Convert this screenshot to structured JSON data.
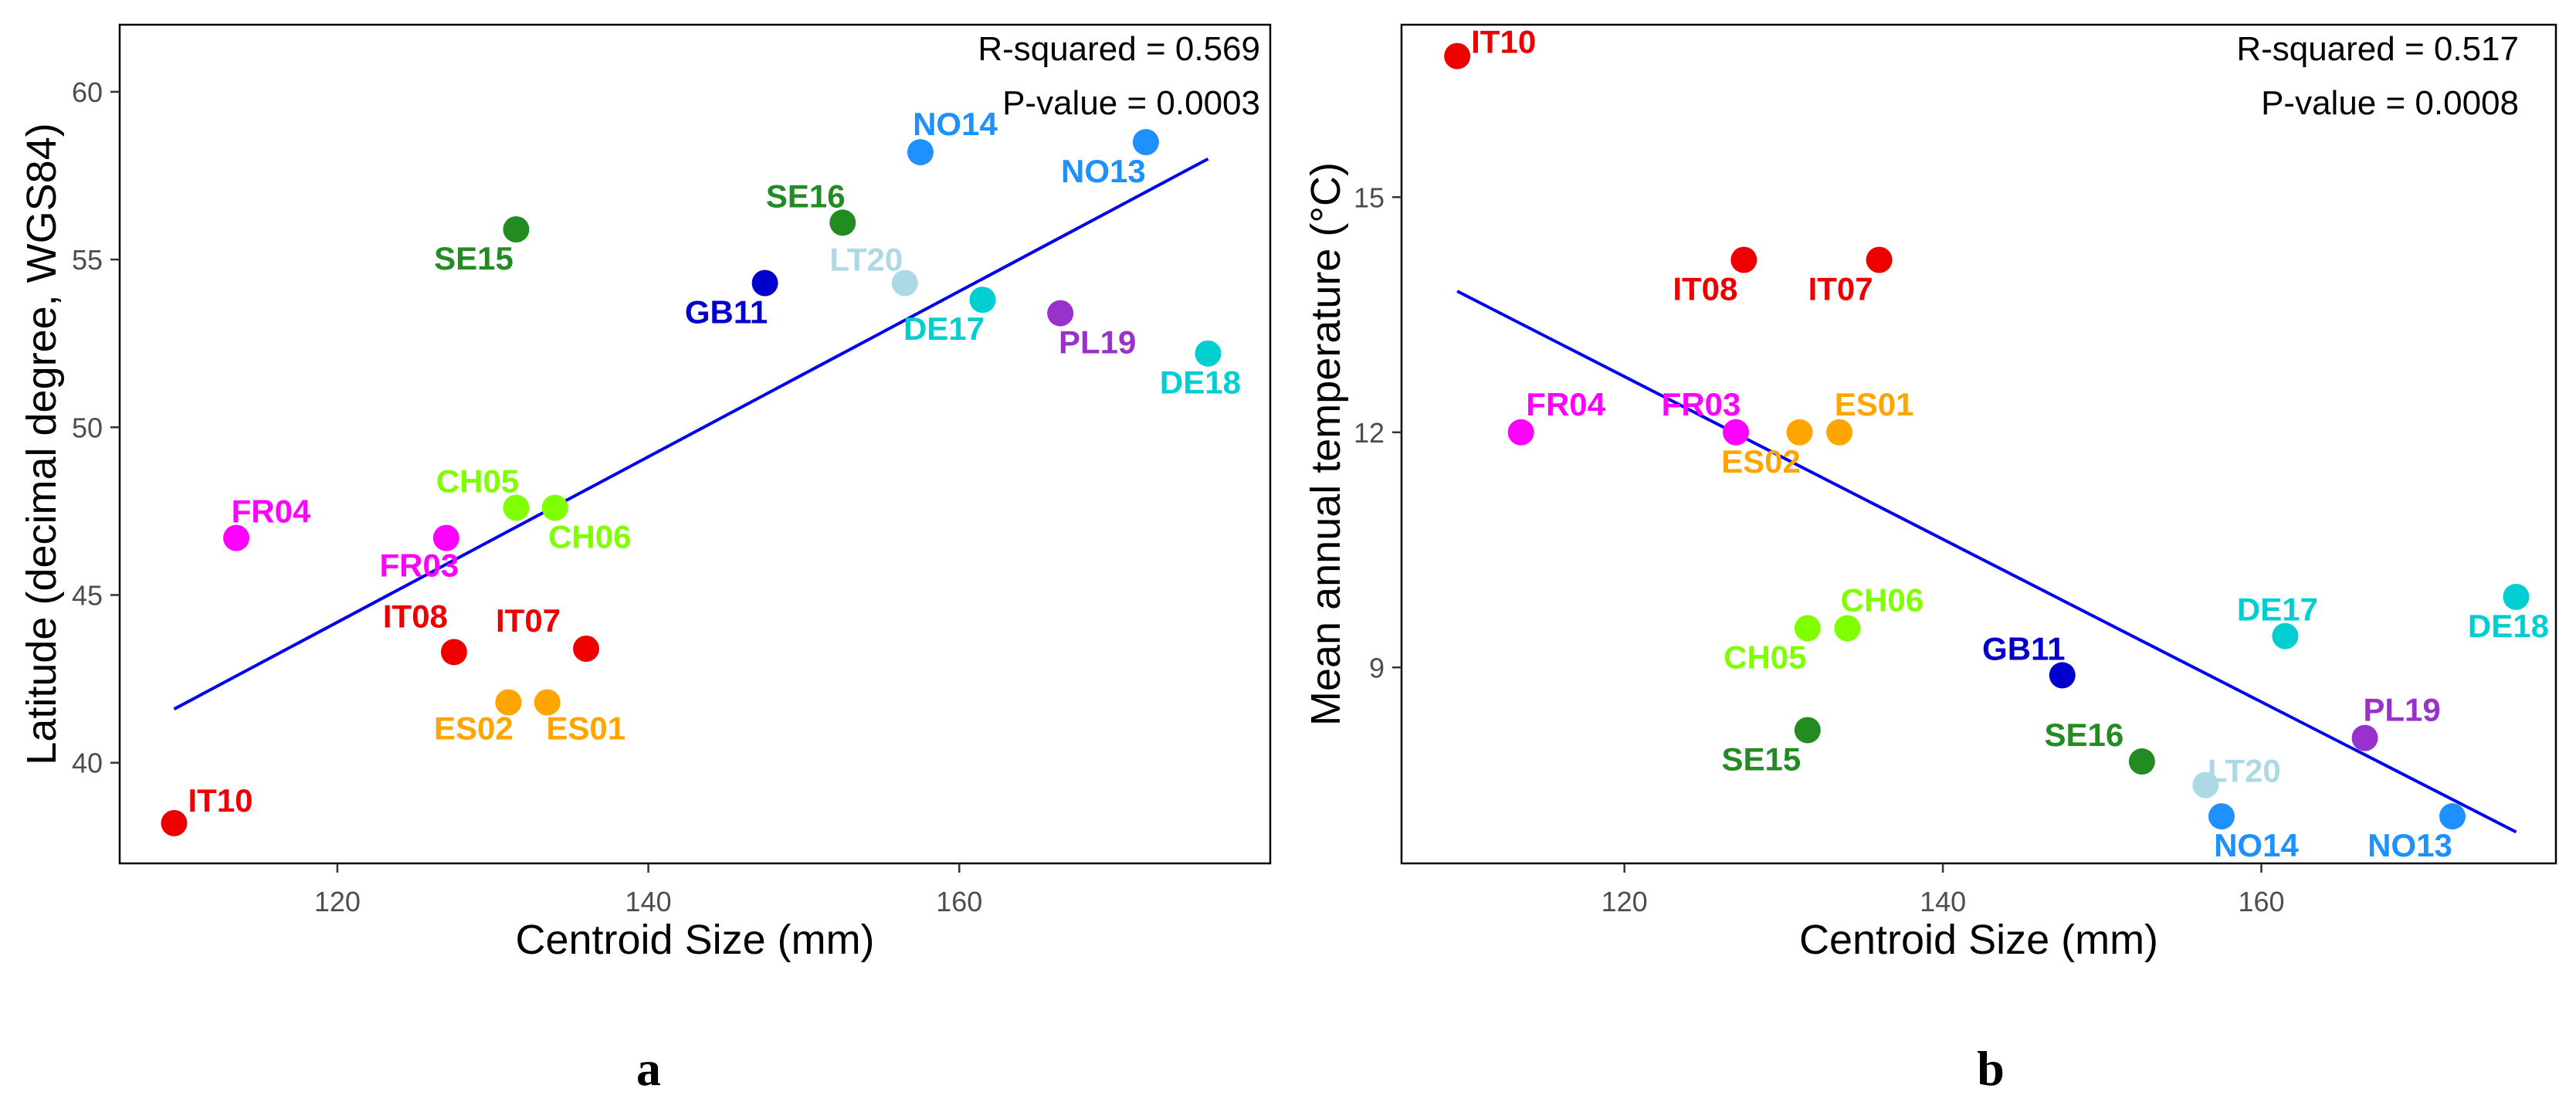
{
  "chart_data": [
    {
      "type": "scatter",
      "panel_label": "a",
      "xlabel": "Centroid Size (mm)",
      "ylabel": "Latitude (decimal degree, WGS84)",
      "xlim": [
        106,
        180
      ],
      "ylim": [
        37,
        62
      ],
      "xticks": [
        "120",
        "140",
        "160"
      ],
      "yticks": [
        "40",
        "45",
        "50",
        "55",
        "60"
      ],
      "grid": false,
      "stats": {
        "r_squared": "R-squared = 0.569",
        "p_value": "P-value = 0.0003"
      },
      "regression": {
        "x": [
          109.5,
          176
        ],
        "y": [
          41.6,
          58.0
        ]
      },
      "points": [
        {
          "label": "IT10",
          "x": 109.5,
          "y": 38.2,
          "color": "#ee0000"
        },
        {
          "label": "FR04",
          "x": 113.5,
          "y": 46.7,
          "color": "#ff00ff"
        },
        {
          "label": "FR03",
          "x": 127,
          "y": 46.7,
          "color": "#ff00ff"
        },
        {
          "label": "IT08",
          "x": 127.5,
          "y": 43.3,
          "color": "#ee0000"
        },
        {
          "label": "CH05",
          "x": 131.5,
          "y": 47.6,
          "color": "#7fff00"
        },
        {
          "label": "CH06",
          "x": 134,
          "y": 47.6,
          "color": "#7fff00"
        },
        {
          "label": "ES02",
          "x": 131,
          "y": 41.8,
          "color": "#ffa500"
        },
        {
          "label": "ES01",
          "x": 133.5,
          "y": 41.8,
          "color": "#ffa500"
        },
        {
          "label": "SE15",
          "x": 131.5,
          "y": 55.9,
          "color": "#228b22"
        },
        {
          "label": "IT07",
          "x": 136,
          "y": 43.4,
          "color": "#ee0000"
        },
        {
          "label": "GB11",
          "x": 147.5,
          "y": 54.3,
          "color": "#0000cd"
        },
        {
          "label": "SE16",
          "x": 152.5,
          "y": 56.1,
          "color": "#228b22"
        },
        {
          "label": "LT20",
          "x": 156.5,
          "y": 54.3,
          "color": "#add8e6"
        },
        {
          "label": "NO14",
          "x": 157.5,
          "y": 58.2,
          "color": "#1e90ff"
        },
        {
          "label": "DE17",
          "x": 161.5,
          "y": 53.8,
          "color": "#00ced1"
        },
        {
          "label": "PL19",
          "x": 166.5,
          "y": 53.4,
          "color": "#9932cc"
        },
        {
          "label": "NO13",
          "x": 172,
          "y": 58.5,
          "color": "#1e90ff"
        },
        {
          "label": "DE18",
          "x": 176,
          "y": 52.2,
          "color": "#00ced1"
        }
      ]
    },
    {
      "type": "scatter",
      "panel_label": "b",
      "xlabel": "Centroid Size (mm)",
      "ylabel": "Mean annual temperature (°C)",
      "xlim": [
        106,
        178.5
      ],
      "ylim": [
        6.5,
        17.2
      ],
      "xticks": [
        "120",
        "140",
        "160"
      ],
      "yticks": [
        "9",
        "12",
        "15"
      ],
      "grid": false,
      "stats": {
        "r_squared": "R-squared = 0.517",
        "p_value": "P-value = 0.0008"
      },
      "regression": {
        "x": [
          109.5,
          176
        ],
        "y": [
          13.8,
          6.9
        ]
      },
      "points": [
        {
          "label": "IT10",
          "x": 109.5,
          "y": 16.8,
          "color": "#ee0000"
        },
        {
          "label": "FR04",
          "x": 113.5,
          "y": 12.0,
          "color": "#ff00ff"
        },
        {
          "label": "FR03",
          "x": 127,
          "y": 12.0,
          "color": "#ff00ff"
        },
        {
          "label": "IT08",
          "x": 127.5,
          "y": 14.2,
          "color": "#ee0000"
        },
        {
          "label": "IT07",
          "x": 136,
          "y": 14.2,
          "color": "#ee0000"
        },
        {
          "label": "ES02",
          "x": 131,
          "y": 12.0,
          "color": "#ffa500"
        },
        {
          "label": "ES01",
          "x": 133.5,
          "y": 12.0,
          "color": "#ffa500"
        },
        {
          "label": "CH05",
          "x": 131.5,
          "y": 9.5,
          "color": "#7fff00"
        },
        {
          "label": "CH06",
          "x": 134,
          "y": 9.5,
          "color": "#7fff00"
        },
        {
          "label": "SE15",
          "x": 131.5,
          "y": 8.2,
          "color": "#228b22"
        },
        {
          "label": "GB11",
          "x": 147.5,
          "y": 8.9,
          "color": "#0000cd"
        },
        {
          "label": "SE16",
          "x": 152.5,
          "y": 7.8,
          "color": "#228b22"
        },
        {
          "label": "LT20",
          "x": 156.5,
          "y": 7.5,
          "color": "#add8e6"
        },
        {
          "label": "NO14",
          "x": 157.5,
          "y": 7.1,
          "color": "#1e90ff"
        },
        {
          "label": "DE17",
          "x": 161.5,
          "y": 9.4,
          "color": "#00ced1"
        },
        {
          "label": "PL19",
          "x": 166.5,
          "y": 8.1,
          "color": "#9932cc"
        },
        {
          "label": "NO13",
          "x": 172,
          "y": 7.1,
          "color": "#1e90ff"
        },
        {
          "label": "DE18",
          "x": 176,
          "y": 9.9,
          "color": "#00ced1"
        }
      ]
    }
  ],
  "line_color": "#0000ee"
}
